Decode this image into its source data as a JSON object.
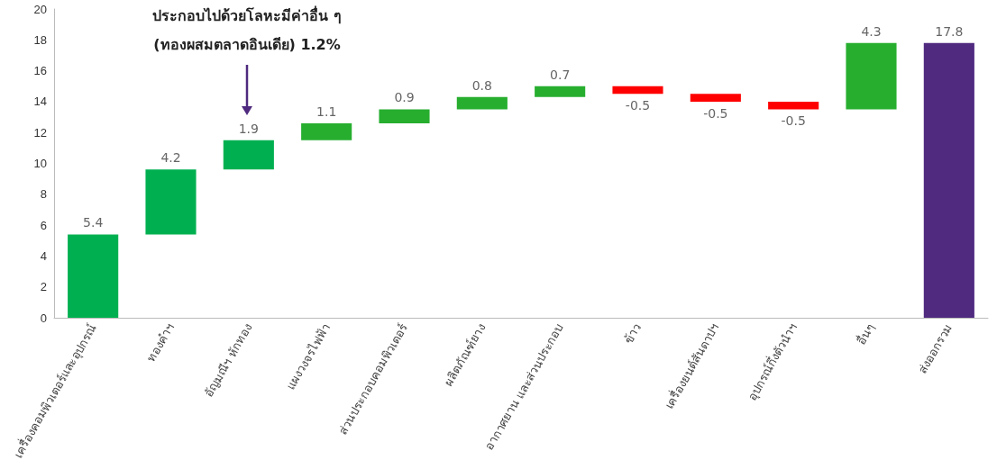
{
  "chart_data": {
    "type": "bar",
    "categories": [
      "เครื่องคอมพิวเตอร์และอุปกรณ์",
      "ทองคำฯ",
      "อัญมณีฯ หักทอง",
      "แผงวงจรไฟฟ้า",
      "ส่วนประกอบคอมพิวเตอร์",
      "ผลิตภัณฑ์ยาง",
      "อากาศยาน และส่วนประกอบ",
      "ข้าว",
      "เครื่องยนต์สันดาปฯ",
      "อุปกรณ์กึ่งตัวนำฯ",
      "อื่นๆ",
      "ส่งออกรวม"
    ],
    "values": [
      5.4,
      4.2,
      1.9,
      1.1,
      0.9,
      0.8,
      0.7,
      -0.5,
      -0.5,
      -0.5,
      4.3,
      17.8
    ],
    "base": [
      0,
      5.4,
      9.6,
      11.5,
      12.6,
      13.5,
      14.3,
      15.0,
      14.5,
      14.0,
      13.5,
      0
    ],
    "colors": [
      "#00b050",
      "#00b050",
      "#00b050",
      "#27ae2f",
      "#27ae2f",
      "#27ae2f",
      "#27ae2f",
      "#ff0000",
      "#ff0000",
      "#ff0000",
      "#27ae2f",
      "#4f2a7f"
    ],
    "ylim": [
      0,
      20
    ],
    "yticks": [
      0,
      2,
      4,
      6,
      8,
      10,
      12,
      14,
      16,
      18,
      20
    ],
    "grid": false,
    "data_labels": true,
    "annotations": [
      "ประกอบไปด้วยโลหะมีค่าอื่น ๆ\n(ทองผสมตลาดอินเดีย) 1.2%"
    ]
  }
}
